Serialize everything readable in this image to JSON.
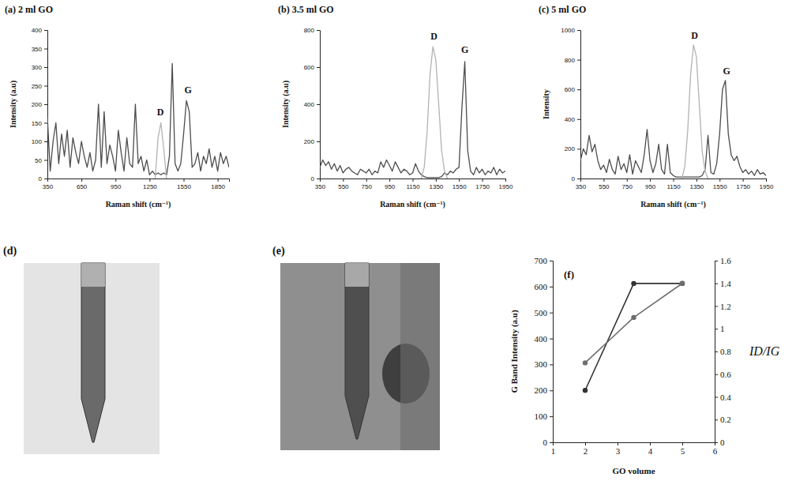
{
  "chart_data": [
    {
      "type": "line",
      "title": "(a) 2 ml GO",
      "xlabel": "Raman shift (cm⁻¹)",
      "ylabel": "Intensity (a.u)",
      "xlim": [
        350,
        1950
      ],
      "ylim": [
        0,
        400
      ],
      "xticks": [
        350,
        650,
        950,
        1250,
        1550,
        1850
      ],
      "yticks": [
        0,
        50,
        100,
        150,
        200,
        250,
        300,
        350,
        400
      ],
      "series": [
        {
          "color": "#4d4d4d",
          "x": [
            350,
            375,
            400,
            425,
            450,
            475,
            500,
            525,
            550,
            575,
            600,
            625,
            650,
            675,
            700,
            725,
            750,
            775,
            800,
            825,
            850,
            875,
            900,
            925,
            950,
            975,
            1000,
            1025,
            1050,
            1075,
            1100,
            1125,
            1150,
            1175,
            1200,
            1225,
            1250,
            1275,
            1300,
            1325,
            1350,
            1375,
            1400,
            1425,
            1450,
            1475,
            1500,
            1525,
            1550,
            1575,
            1600,
            1625,
            1650,
            1675,
            1700,
            1725,
            1750,
            1775,
            1800,
            1825,
            1850,
            1875,
            1900,
            1925,
            1950
          ],
          "values": [
            165,
            20,
            100,
            150,
            40,
            120,
            60,
            130,
            30,
            110,
            70,
            40,
            100,
            60,
            30,
            70,
            20,
            50,
            200,
            30,
            180,
            40,
            90,
            60,
            20,
            130,
            70,
            20,
            110,
            40,
            30,
            200,
            40,
            60,
            20,
            50,
            10,
            20,
            10,
            15,
            10,
            15,
            10,
            60,
            310,
            40,
            20,
            40,
            120,
            210,
            180,
            30,
            40,
            70,
            20,
            60,
            40,
            80,
            30,
            60,
            20,
            70,
            40,
            60,
            30
          ]
        },
        {
          "color": "#b3b3b3",
          "x": [
            1300,
            1325,
            1350,
            1375,
            1400
          ],
          "values": [
            0,
            110,
            150,
            80,
            0
          ]
        }
      ],
      "annotations": [
        {
          "text": "D",
          "x": 1345,
          "y": 170
        },
        {
          "text": "G",
          "x": 1590,
          "y": 230
        }
      ]
    },
    {
      "type": "line",
      "title": "(b) 3.5 ml GO",
      "xlabel": "Raman shift (cm⁻¹)",
      "ylabel": "Intensity (a.u)",
      "xlim": [
        350,
        1950
      ],
      "ylim": [
        0,
        800
      ],
      "xticks": [
        350,
        550,
        750,
        950,
        1150,
        1350,
        1550,
        1750,
        1950
      ],
      "yticks": [
        0,
        200,
        400,
        600,
        800
      ],
      "series": [
        {
          "color": "#4d4d4d",
          "x": [
            350,
            375,
            400,
            425,
            450,
            475,
            500,
            525,
            550,
            575,
            600,
            625,
            650,
            675,
            700,
            725,
            750,
            775,
            800,
            825,
            850,
            875,
            900,
            925,
            950,
            975,
            1000,
            1025,
            1050,
            1075,
            1100,
            1125,
            1150,
            1175,
            1200,
            1225,
            1250,
            1275,
            1300,
            1325,
            1350,
            1375,
            1400,
            1425,
            1450,
            1475,
            1500,
            1525,
            1550,
            1575,
            1600,
            1625,
            1650,
            1675,
            1700,
            1725,
            1750,
            1775,
            1800,
            1825,
            1850,
            1875,
            1900,
            1925,
            1950
          ],
          "values": [
            60,
            100,
            70,
            90,
            50,
            80,
            40,
            70,
            30,
            50,
            60,
            40,
            30,
            20,
            50,
            40,
            30,
            50,
            20,
            40,
            30,
            90,
            60,
            100,
            70,
            40,
            90,
            60,
            30,
            50,
            40,
            20,
            30,
            80,
            40,
            20,
            10,
            5,
            5,
            5,
            5,
            5,
            10,
            30,
            20,
            40,
            30,
            50,
            60,
            380,
            630,
            150,
            40,
            20,
            60,
            30,
            50,
            20,
            40,
            30,
            60,
            20,
            50,
            30,
            40
          ]
        },
        {
          "color": "#b3b3b3",
          "x": [
            1225,
            1250,
            1275,
            1300,
            1325,
            1350,
            1375,
            1400,
            1425,
            1450
          ],
          "values": [
            0,
            60,
            250,
            560,
            710,
            640,
            400,
            150,
            40,
            0
          ]
        }
      ],
      "annotations": [
        {
          "text": "D",
          "x": 1335,
          "y": 750
        },
        {
          "text": "G",
          "x": 1600,
          "y": 675
        }
      ]
    },
    {
      "type": "line",
      "title": "(c) 5 ml GO",
      "xlabel": "Raman shift (cm⁻¹)",
      "ylabel": "Intensity",
      "xlim": [
        350,
        1950
      ],
      "ylim": [
        0,
        1000
      ],
      "xticks": [
        350,
        550,
        750,
        950,
        1150,
        1350,
        1550,
        1750,
        1950
      ],
      "yticks": [
        0,
        200,
        400,
        600,
        800,
        1000
      ],
      "series": [
        {
          "color": "#4d4d4d",
          "x": [
            350,
            375,
            400,
            425,
            450,
            475,
            500,
            525,
            550,
            575,
            600,
            625,
            650,
            675,
            700,
            725,
            750,
            775,
            800,
            825,
            850,
            875,
            900,
            925,
            950,
            975,
            1000,
            1025,
            1050,
            1075,
            1100,
            1125,
            1150,
            1175,
            1200,
            1225,
            1250,
            1275,
            1300,
            1325,
            1350,
            1375,
            1400,
            1425,
            1450,
            1475,
            1500,
            1525,
            1550,
            1575,
            1600,
            1625,
            1650,
            1675,
            1700,
            1725,
            1750,
            1775,
            1800,
            1825,
            1850,
            1875,
            1900,
            1925,
            1950
          ],
          "values": [
            120,
            200,
            160,
            290,
            180,
            230,
            120,
            60,
            90,
            40,
            130,
            60,
            30,
            150,
            60,
            100,
            40,
            160,
            30,
            120,
            80,
            40,
            160,
            330,
            120,
            40,
            100,
            230,
            60,
            30,
            230,
            40,
            20,
            10,
            10,
            10,
            10,
            10,
            10,
            10,
            10,
            10,
            20,
            60,
            290,
            40,
            30,
            100,
            300,
            600,
            660,
            300,
            160,
            120,
            150,
            80,
            40,
            60,
            30,
            50,
            20,
            60,
            30,
            40,
            20
          ]
        },
        {
          "color": "#b3b3b3",
          "x": [
            1225,
            1250,
            1275,
            1300,
            1325,
            1350,
            1375,
            1400,
            1425,
            1450
          ],
          "values": [
            0,
            80,
            320,
            700,
            900,
            820,
            500,
            180,
            50,
            0
          ]
        }
      ],
      "annotations": [
        {
          "text": "D",
          "x": 1335,
          "y": 940
        },
        {
          "text": "G",
          "x": 1610,
          "y": 700
        }
      ]
    },
    {
      "type": "line",
      "title": "(f)",
      "xlabel": "GO volume",
      "ylabel": "G Band Intensity (a.u)",
      "y2label": "ID/IG",
      "x": [
        2,
        3.5,
        5
      ],
      "xlim": [
        1,
        6
      ],
      "ylim": [
        0,
        700
      ],
      "y2lim": [
        0,
        1.6
      ],
      "xticks": [
        1,
        2,
        3,
        4,
        5,
        6
      ],
      "yticks": [
        0,
        100,
        200,
        300,
        400,
        500,
        600,
        700
      ],
      "y2ticks": [
        0,
        0.2,
        0.4,
        0.6,
        0.8,
        1,
        1.2,
        1.4,
        1.6
      ],
      "series": [
        {
          "color": "#333333",
          "marker": "circle",
          "values": [
            200,
            612,
            612
          ]
        },
        {
          "color": "#6e6e6e",
          "marker": "circle",
          "axis": "y2",
          "values": [
            0.7,
            1.1,
            1.4
          ]
        }
      ]
    }
  ],
  "images": [
    {
      "label": "(d)"
    },
    {
      "label": "(e)"
    }
  ]
}
